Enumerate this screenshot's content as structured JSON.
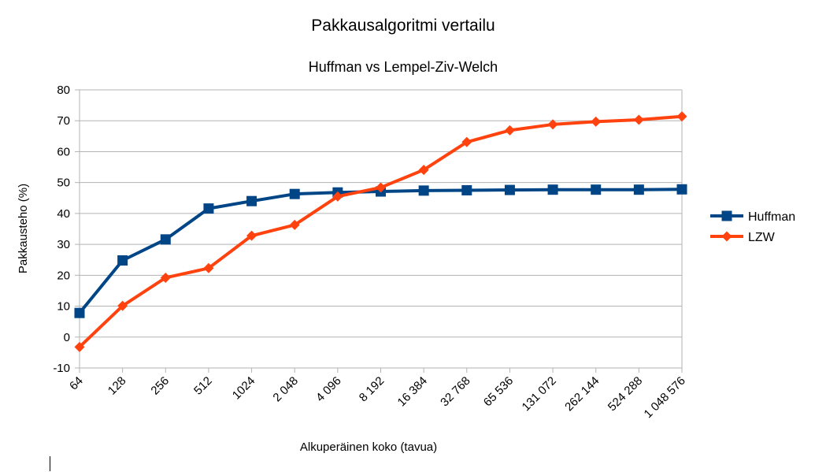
{
  "chart_data": {
    "type": "line",
    "title": "Pakkausalgoritmi vertailu",
    "subtitle": "Huffman vs Lempel-Ziv-Welch",
    "xlabel": "Alkuperäinen koko (tavua)",
    "ylabel": "Pakkausteho (%)",
    "ylim": [
      -10,
      80
    ],
    "yticks": [
      -10,
      0,
      10,
      20,
      30,
      40,
      50,
      60,
      70,
      80
    ],
    "grid": true,
    "legend_position": "right",
    "categories": [
      "64",
      "128",
      "256",
      "512",
      "1024",
      "2 048",
      "4 096",
      "8 192",
      "16 384",
      "32 768",
      "65 536",
      "131 072",
      "262 144",
      "524 288",
      "1 048 576"
    ],
    "series": [
      {
        "name": "Huffman",
        "color": "#004586",
        "marker": "square",
        "values": [
          7.8,
          24.8,
          31.6,
          41.6,
          44.0,
          46.3,
          46.8,
          47.1,
          47.4,
          47.5,
          47.6,
          47.7,
          47.7,
          47.7,
          47.8
        ]
      },
      {
        "name": "LZW",
        "color": "#ff420e",
        "marker": "diamond",
        "values": [
          -3.2,
          10.1,
          19.2,
          22.3,
          32.8,
          36.3,
          45.5,
          48.4,
          54.1,
          63.1,
          66.9,
          68.8,
          69.7,
          70.3,
          71.4
        ]
      }
    ]
  }
}
